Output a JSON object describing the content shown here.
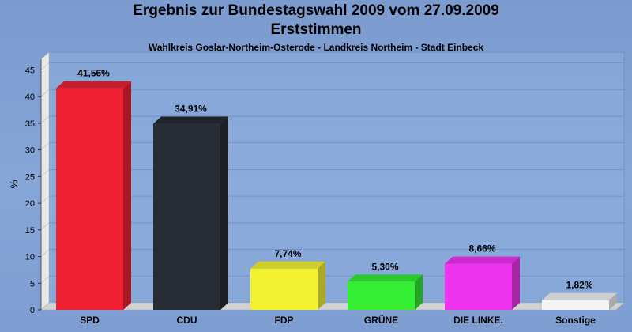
{
  "chart_data": {
    "type": "bar",
    "title": "Ergebnis zur Bundestagswahl 2009 vom 27.09.2009",
    "title2": "Erststimmen",
    "subtitle": "Wahlkreis Goslar-Northeim-Osterode - Landkreis Northeim - Stadt Einbeck",
    "ylabel": "%",
    "ylim": [
      0,
      47
    ],
    "yticks": [
      0,
      5,
      10,
      15,
      20,
      25,
      30,
      35,
      40,
      45
    ],
    "grid": true,
    "categories": [
      "SPD",
      "CDU",
      "FDP",
      "GRÜNE",
      "DIE LINKE.",
      "Sonstige"
    ],
    "values": [
      41.56,
      34.91,
      7.74,
      5.3,
      8.66,
      1.82
    ],
    "data_labels": [
      "41,56%",
      "34,91%",
      "7,74%",
      "5,30%",
      "8,66%",
      "1,82%"
    ],
    "colors": [
      "#ee2233",
      "#262b34",
      "#f2f233",
      "#33ee33",
      "#ee33ee",
      "#f4f4f4"
    ]
  }
}
